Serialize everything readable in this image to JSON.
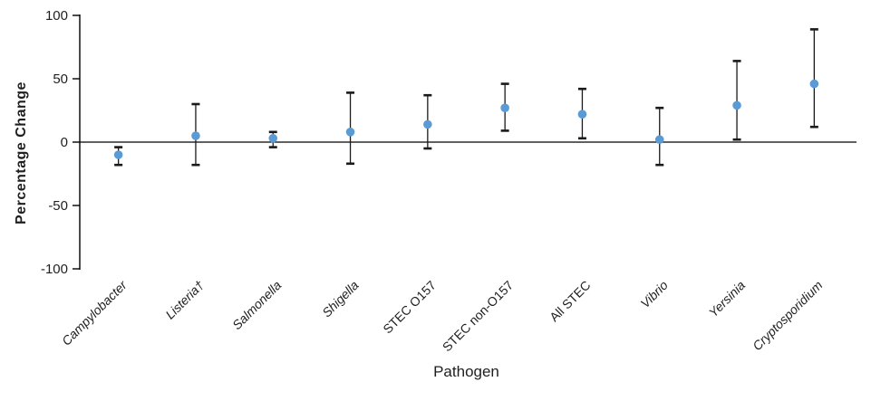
{
  "chart_data": {
    "type": "scatter",
    "title": "",
    "xlabel": "Pathogen",
    "ylabel": "Percentage Change",
    "ylim": [
      -100,
      100
    ],
    "yticks": [
      100,
      50,
      0,
      -50,
      -100
    ],
    "grid": false,
    "legend": "none",
    "marker_color": "#5B9BD5",
    "error_bar_color": "#1a1a1a",
    "axis_color": "#000000",
    "categories": [
      "Campylobacter",
      "Listeria†",
      "Salmonella",
      "Shigella",
      "STEC O157",
      "STEC non-O157",
      "All STEC",
      "Vibrio",
      "Yersinia",
      "Cryptosporidium"
    ],
    "points": [
      {
        "pathogen": "Campylobacter",
        "italic": true,
        "value": -10,
        "ci_low": -18,
        "ci_high": -4
      },
      {
        "pathogen": "Listeria†",
        "italic": true,
        "value": 5,
        "ci_low": -18,
        "ci_high": 30
      },
      {
        "pathogen": "Salmonella",
        "italic": true,
        "value": 3,
        "ci_low": -4,
        "ci_high": 8
      },
      {
        "pathogen": "Shigella",
        "italic": true,
        "value": 8,
        "ci_low": -17,
        "ci_high": 39
      },
      {
        "pathogen": "STEC O157",
        "italic": false,
        "value": 14,
        "ci_low": -5,
        "ci_high": 37
      },
      {
        "pathogen": "STEC non-O157",
        "italic": false,
        "value": 27,
        "ci_low": 9,
        "ci_high": 46
      },
      {
        "pathogen": "All STEC",
        "italic": false,
        "value": 22,
        "ci_low": 3,
        "ci_high": 42
      },
      {
        "pathogen": "Vibrio",
        "italic": true,
        "value": 2,
        "ci_low": -18,
        "ci_high": 27
      },
      {
        "pathogen": "Yersinia",
        "italic": true,
        "value": 29,
        "ci_low": 2,
        "ci_high": 64
      },
      {
        "pathogen": "Cryptosporidium",
        "italic": true,
        "value": 46,
        "ci_low": 12,
        "ci_high": 89
      }
    ]
  }
}
